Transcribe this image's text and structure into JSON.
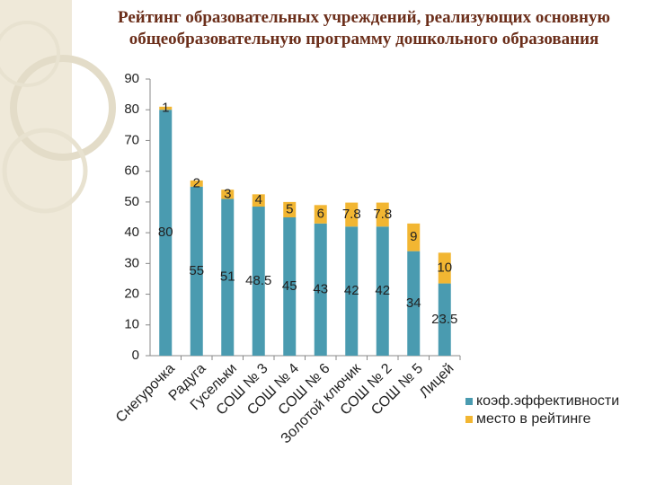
{
  "chart_data": {
    "type": "stacked_bar",
    "title": "Рейтинг образовательных учреждений, реализующих основную общеобразовательную программу дошкольного образования",
    "categories": [
      "Снегурочка",
      "Радуга",
      "Гусельки",
      "СОШ № 3",
      "СОШ № 4",
      "СОШ № 6",
      "Золотой ключик",
      "СОШ № 2",
      "СОШ № 5",
      "Лицей"
    ],
    "series": [
      {
        "name": "коэф.эффективности",
        "color": "#4a9bb0",
        "values": [
          80,
          55,
          51,
          48.5,
          45,
          43,
          42,
          42,
          34,
          23.5
        ]
      },
      {
        "name": "место в рейтинге",
        "color": "#f2b632",
        "values": [
          1,
          2,
          3,
          4,
          5,
          6,
          7.8,
          7.8,
          9,
          10
        ]
      }
    ],
    "ylim": [
      0,
      90
    ],
    "yticks": [
      0,
      10,
      20,
      30,
      40,
      50,
      60,
      70,
      80,
      90
    ],
    "legend": "right"
  }
}
